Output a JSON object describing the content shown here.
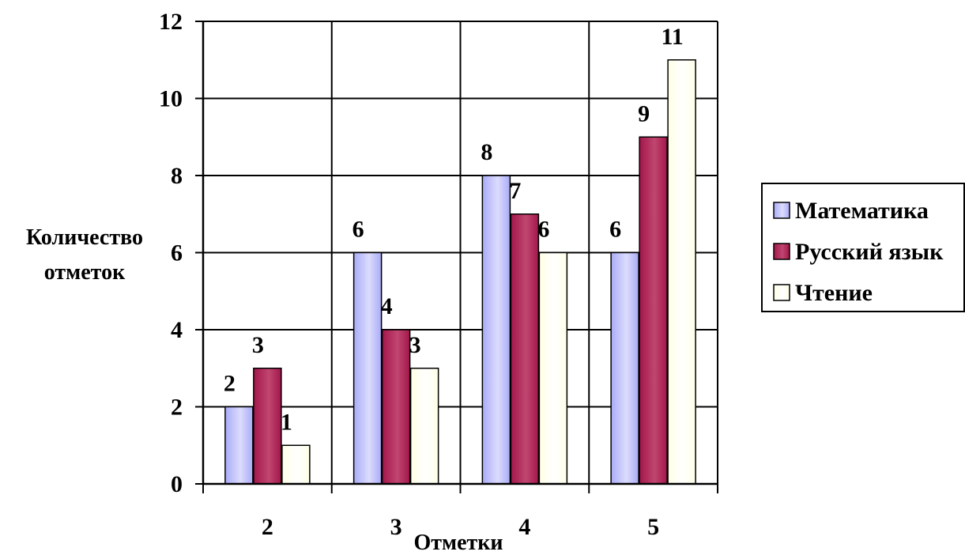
{
  "chart_data": {
    "type": "bar",
    "categories": [
      "2",
      "3",
      "4",
      "5"
    ],
    "series": [
      {
        "name": "Математика",
        "values": [
          2,
          6,
          8,
          6
        ],
        "color": "#a9abf7",
        "highlight": "#dcdcfd"
      },
      {
        "name": "Русский язык",
        "values": [
          3,
          4,
          7,
          9
        ],
        "color": "#a3164a",
        "highlight": "#c04670"
      },
      {
        "name": "Чтение",
        "values": [
          1,
          3,
          6,
          11
        ],
        "color": "#ffffe6",
        "highlight": "#ffffff"
      }
    ],
    "xlabel": "Отметки",
    "ylabel": [
      "Количество",
      "отметок"
    ],
    "ylim": [
      0,
      12
    ],
    "yticks": [
      0,
      2,
      4,
      6,
      8,
      10,
      12
    ],
    "grid": true,
    "legend": "right",
    "data_labels": true
  }
}
